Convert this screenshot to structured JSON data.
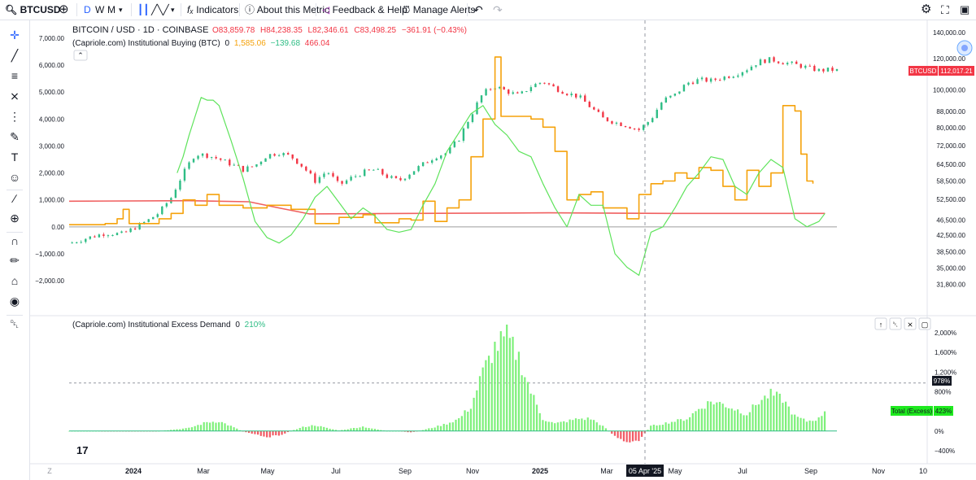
{
  "topbar": {
    "symbol": "BTCUSD",
    "intervals": [
      "D",
      "W",
      "M"
    ],
    "indicators": "Indicators",
    "about_metric": "About this Metric",
    "feedback": "Feedback & Help",
    "manage_alerts": "Manage Alerts"
  },
  "legend": {
    "symbol_line": "BITCOIN / USD · 1D · COINBASE",
    "ohlc": {
      "o": "O83,859.78",
      "h": "H84,238.35",
      "l": "L82,346.61",
      "c": "C83,498.25",
      "chg": "−361.91 (−0.43%)"
    },
    "indicator_name": "(Capriole.com) Institutional Buying (BTC)",
    "indicator_param": "0",
    "indicator_values": [
      "1,585.06",
      "−139.68",
      "466.04"
    ],
    "excess_name": "(Capriole.com) Institutional Excess Demand",
    "excess_param": "0",
    "excess_value": "210%"
  },
  "price_label": {
    "symbol": "BTCUSD",
    "value": "112,017.21"
  },
  "excess_labels": {
    "level": "978%",
    "total_name": "Total (Excess)",
    "total_value": "423%"
  },
  "crosshair_date": "05 Apr '25",
  "tv_logo": "17",
  "colors": {
    "green": "#2ebd85",
    "red": "#f23645",
    "orange": "#f5a20b",
    "lime": "#5ee35b",
    "ma_red": "#f06060",
    "hist_green": "#7ef07a",
    "hist_red": "#f25a64"
  },
  "chart_data": [
    {
      "type": "line",
      "name": "price_and_institutional_buying",
      "left_axis": {
        "ticks": [
          "7,000.00",
          "6,000.00",
          "5,000.00",
          "4,000.00",
          "3,000.00",
          "2,000.00",
          "1,000.00",
          "0.00",
          "−1,000.00",
          "−2,000.00"
        ],
        "range": [
          -2300,
          7300
        ]
      },
      "right_axis": {
        "scale": "log",
        "ticks": [
          "140,000.00",
          "120,000.00",
          "100,000.00",
          "88,000.00",
          "80,000.00",
          "72,000.00",
          "64,500.00",
          "58,500.00",
          "52,500.00",
          "46,500.00",
          "42,500.00",
          "38,500.00",
          "35,000.00",
          "31,800.00"
        ],
        "range": [
          31000,
          142000
        ]
      },
      "x_ticks": [
        "Z",
        "2024",
        "Mar",
        "May",
        "Jul",
        "Sep",
        "Nov",
        "2025",
        "Mar",
        "May",
        "Jul",
        "Sep",
        "Nov",
        "10"
      ],
      "price_series": [
        [
          0,
          40500
        ],
        [
          3,
          41800
        ],
        [
          6,
          43000
        ],
        [
          9,
          42800
        ],
        [
          11,
          44500
        ],
        [
          13,
          46200
        ],
        [
          15,
          48500
        ],
        [
          17,
          53000
        ],
        [
          19,
          61000
        ],
        [
          21,
          68500
        ],
        [
          23,
          68000
        ],
        [
          25,
          66500
        ],
        [
          27,
          64500
        ],
        [
          29,
          62500
        ],
        [
          31,
          64000
        ],
        [
          33,
          68000
        ],
        [
          35,
          69000
        ],
        [
          37,
          67500
        ],
        [
          39,
          63500
        ],
        [
          41,
          58500
        ],
        [
          43,
          62000
        ],
        [
          45,
          57000
        ],
        [
          47,
          59500
        ],
        [
          49,
          61500
        ],
        [
          51,
          62500
        ],
        [
          53,
          60000
        ],
        [
          55,
          58500
        ],
        [
          57,
          61500
        ],
        [
          59,
          64500
        ],
        [
          61,
          67500
        ],
        [
          63,
          69000
        ],
        [
          65,
          75000
        ],
        [
          67,
          86000
        ],
        [
          69,
          98000
        ],
        [
          71,
          102000
        ],
        [
          73,
          99000
        ],
        [
          75,
          96500
        ],
        [
          77,
          102000
        ],
        [
          79,
          105000
        ],
        [
          81,
          101000
        ],
        [
          83,
          98000
        ],
        [
          85,
          96000
        ],
        [
          87,
          90000
        ],
        [
          89,
          84500
        ],
        [
          91,
          82500
        ],
        [
          93,
          81000
        ],
        [
          95,
          79000
        ],
        [
          97,
          84000
        ],
        [
          99,
          94000
        ],
        [
          101,
          97000
        ],
        [
          103,
          104000
        ],
        [
          105,
          106000
        ],
        [
          107,
          105500
        ],
        [
          109,
          107500
        ],
        [
          111,
          109500
        ],
        [
          113,
          113000
        ],
        [
          115,
          118000
        ],
        [
          117,
          119500
        ],
        [
          119,
          117500
        ],
        [
          121,
          116000
        ],
        [
          123,
          114000
        ],
        [
          125,
          112000
        ],
        [
          127,
          112500
        ],
        [
          128,
          112000
        ]
      ],
      "orange_series": [
        [
          0,
          80
        ],
        [
          6,
          120
        ],
        [
          8,
          300
        ],
        [
          9,
          650
        ],
        [
          10,
          120
        ],
        [
          15,
          300
        ],
        [
          17,
          500
        ],
        [
          19,
          1000
        ],
        [
          21,
          800
        ],
        [
          23,
          1200
        ],
        [
          25,
          800
        ],
        [
          29,
          700
        ],
        [
          33,
          800
        ],
        [
          37,
          650
        ],
        [
          41,
          120
        ],
        [
          45,
          350
        ],
        [
          49,
          450
        ],
        [
          51,
          150
        ],
        [
          55,
          300
        ],
        [
          57,
          250
        ],
        [
          59,
          950
        ],
        [
          61,
          200
        ],
        [
          63,
          700
        ],
        [
          65,
          1000
        ],
        [
          67,
          2600
        ],
        [
          69,
          4000
        ],
        [
          71,
          6300
        ],
        [
          72,
          4100
        ],
        [
          75,
          4100
        ],
        [
          77,
          4000
        ],
        [
          79,
          3700
        ],
        [
          81,
          2800
        ],
        [
          83,
          1000
        ],
        [
          85,
          1200
        ],
        [
          87,
          1300
        ],
        [
          89,
          700
        ],
        [
          93,
          300
        ],
        [
          95,
          1200
        ],
        [
          97,
          1600
        ],
        [
          99,
          1700
        ],
        [
          101,
          2000
        ],
        [
          103,
          1800
        ],
        [
          105,
          2200
        ],
        [
          107,
          2100
        ],
        [
          109,
          1500
        ],
        [
          111,
          1000
        ],
        [
          113,
          2100
        ],
        [
          115,
          1500
        ],
        [
          117,
          2000
        ],
        [
          119,
          4500
        ],
        [
          121,
          4300
        ],
        [
          122,
          2700
        ],
        [
          123,
          1700
        ],
        [
          124,
          1600
        ]
      ],
      "green_series": [
        [
          18,
          2000
        ],
        [
          19,
          2600
        ],
        [
          20,
          3400
        ],
        [
          21,
          4100
        ],
        [
          22,
          4800
        ],
        [
          23,
          4700
        ],
        [
          24,
          4700
        ],
        [
          25,
          4500
        ],
        [
          27,
          3200
        ],
        [
          29,
          1800
        ],
        [
          31,
          200
        ],
        [
          33,
          -400
        ],
        [
          35,
          -600
        ],
        [
          37,
          -300
        ],
        [
          39,
          300
        ],
        [
          41,
          1100
        ],
        [
          43,
          1500
        ],
        [
          45,
          900
        ],
        [
          47,
          300
        ],
        [
          49,
          700
        ],
        [
          51,
          400
        ],
        [
          53,
          -100
        ],
        [
          55,
          -200
        ],
        [
          57,
          -100
        ],
        [
          59,
          800
        ],
        [
          61,
          1600
        ],
        [
          63,
          2800
        ],
        [
          65,
          3500
        ],
        [
          67,
          4200
        ],
        [
          69,
          4500
        ],
        [
          71,
          3800
        ],
        [
          73,
          3400
        ],
        [
          75,
          2800
        ],
        [
          77,
          2600
        ],
        [
          79,
          1600
        ],
        [
          81,
          700
        ],
        [
          83,
          0
        ],
        [
          85,
          1200
        ],
        [
          87,
          800
        ],
        [
          89,
          800
        ],
        [
          91,
          -1000
        ],
        [
          93,
          -1500
        ],
        [
          95,
          -1800
        ],
        [
          97,
          -200
        ],
        [
          99,
          0
        ],
        [
          101,
          700
        ],
        [
          103,
          1500
        ],
        [
          105,
          2000
        ],
        [
          107,
          2600
        ],
        [
          109,
          2500
        ],
        [
          111,
          1500
        ],
        [
          113,
          1200
        ],
        [
          115,
          2000
        ],
        [
          117,
          2500
        ],
        [
          119,
          2200
        ],
        [
          121,
          300
        ],
        [
          123,
          0
        ],
        [
          125,
          200
        ],
        [
          126,
          500
        ]
      ],
      "ma_series": [
        [
          0,
          950
        ],
        [
          20,
          970
        ],
        [
          30,
          930
        ],
        [
          35,
          700
        ],
        [
          40,
          480
        ],
        [
          80,
          520
        ],
        [
          100,
          500
        ],
        [
          126,
          500
        ]
      ]
    },
    {
      "type": "bar",
      "name": "institutional_excess_demand",
      "y_axis": {
        "ticks": [
          "2,000%",
          "1,600%",
          "1,200%",
          "800%",
          "400%",
          "0%",
          "−400%"
        ],
        "range": [
          -500,
          2100
        ]
      },
      "dashed_level": 978,
      "values": [
        [
          0,
          0
        ],
        [
          5,
          0
        ],
        [
          10,
          -10
        ],
        [
          15,
          0
        ],
        [
          20,
          60
        ],
        [
          23,
          180
        ],
        [
          25,
          200
        ],
        [
          27,
          100
        ],
        [
          29,
          -10
        ],
        [
          31,
          -60
        ],
        [
          33,
          -120
        ],
        [
          35,
          -90
        ],
        [
          37,
          0
        ],
        [
          39,
          80
        ],
        [
          41,
          120
        ],
        [
          43,
          60
        ],
        [
          45,
          10
        ],
        [
          47,
          50
        ],
        [
          49,
          90
        ],
        [
          51,
          40
        ],
        [
          53,
          0
        ],
        [
          55,
          0
        ],
        [
          57,
          -30
        ],
        [
          59,
          20
        ],
        [
          61,
          80
        ],
        [
          63,
          150
        ],
        [
          65,
          250
        ],
        [
          67,
          500
        ],
        [
          69,
          1200
        ],
        [
          71,
          1700
        ],
        [
          73,
          1900
        ],
        [
          75,
          1500
        ],
        [
          77,
          800
        ],
        [
          79,
          250
        ],
        [
          81,
          150
        ],
        [
          83,
          200
        ],
        [
          85,
          250
        ],
        [
          87,
          250
        ],
        [
          89,
          100
        ],
        [
          91,
          -100
        ],
        [
          93,
          -250
        ],
        [
          95,
          -180
        ],
        [
          97,
          100
        ],
        [
          99,
          150
        ],
        [
          101,
          200
        ],
        [
          103,
          250
        ],
        [
          105,
          450
        ],
        [
          107,
          600
        ],
        [
          109,
          550
        ],
        [
          111,
          450
        ],
        [
          113,
          350
        ],
        [
          115,
          600
        ],
        [
          117,
          750
        ],
        [
          119,
          650
        ],
        [
          121,
          300
        ],
        [
          123,
          200
        ],
        [
          125,
          250
        ],
        [
          126,
          420
        ]
      ]
    }
  ]
}
